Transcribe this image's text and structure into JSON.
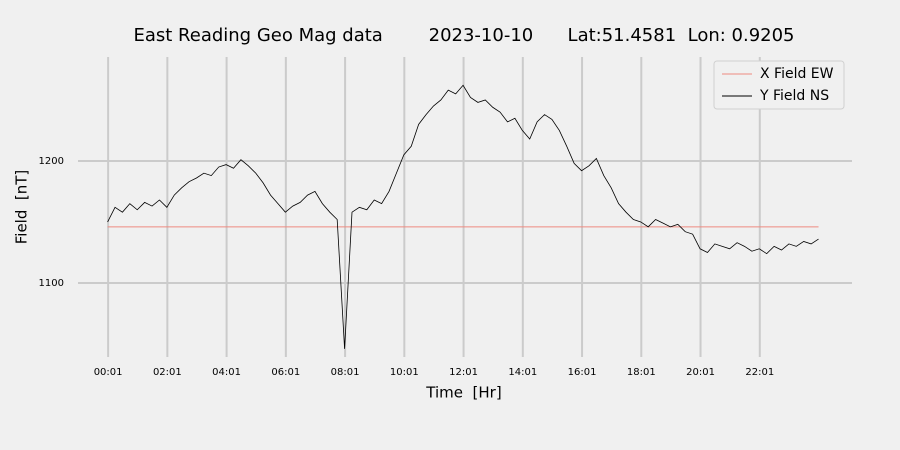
{
  "chart_data": {
    "type": "line",
    "title": "East Reading Geo Mag data        2023-10-10      Lat:51.4581  Lon: 0.9205",
    "x_label": "Time  [Hr]",
    "y_label": "Field  [nT]",
    "xlim": [
      -1.0,
      25.13
    ],
    "ylim": [
      1039.3,
      1285.2
    ],
    "xticks": [
      {
        "value": 0.0167,
        "label": "00:01"
      },
      {
        "value": 2.0167,
        "label": "02:01"
      },
      {
        "value": 4.0167,
        "label": "04:01"
      },
      {
        "value": 6.0167,
        "label": "06:01"
      },
      {
        "value": 8.0167,
        "label": "08:01"
      },
      {
        "value": 10.0167,
        "label": "10:01"
      },
      {
        "value": 12.0167,
        "label": "12:01"
      },
      {
        "value": 14.0167,
        "label": "14:01"
      },
      {
        "value": 16.0167,
        "label": "16:01"
      },
      {
        "value": 18.0167,
        "label": "18:01"
      },
      {
        "value": 20.0167,
        "label": "20:01"
      },
      {
        "value": 22.0167,
        "label": "22:01"
      }
    ],
    "yticks": [
      1100,
      1200
    ],
    "grid": true,
    "legend": "upper right",
    "x": [
      0,
      0.25,
      0.5,
      0.75,
      1,
      1.25,
      1.5,
      1.75,
      2,
      2.25,
      2.5,
      2.75,
      3,
      3.25,
      3.5,
      3.75,
      4,
      4.25,
      4.5,
      4.75,
      5,
      5.25,
      5.5,
      5.75,
      6,
      6.25,
      6.5,
      6.75,
      7,
      7.25,
      7.5,
      7.75,
      8,
      8.25,
      8.5,
      8.75,
      9,
      9.25,
      9.5,
      9.75,
      10,
      10.25,
      10.5,
      10.75,
      11,
      11.25,
      11.5,
      11.75,
      12,
      12.25,
      12.5,
      12.75,
      13,
      13.25,
      13.5,
      13.75,
      14,
      14.25,
      14.5,
      14.75,
      15,
      15.25,
      15.5,
      15.75,
      16,
      16.25,
      16.5,
      16.75,
      17,
      17.25,
      17.5,
      17.75,
      18,
      18.25,
      18.5,
      18.75,
      19,
      19.25,
      19.5,
      19.75,
      20,
      20.25,
      20.5,
      20.75,
      21,
      21.25,
      21.5,
      21.75,
      22,
      22.25,
      22.5,
      22.75,
      23,
      23.25,
      23.5,
      23.75,
      24
    ],
    "series": [
      {
        "name": "X Field EW",
        "color": "#ee8a80",
        "values": [
          1146,
          1146,
          1146,
          1146,
          1146,
          1146,
          1146,
          1146,
          1146,
          1146,
          1146,
          1146,
          1146,
          1146,
          1146,
          1146,
          1146,
          1146,
          1146,
          1146,
          1146,
          1146,
          1146,
          1146,
          1146,
          1146,
          1146,
          1146,
          1146,
          1146,
          1146,
          1146,
          1146,
          1146,
          1146,
          1146,
          1146,
          1146,
          1146,
          1146,
          1146,
          1146,
          1146,
          1146,
          1146,
          1146,
          1146,
          1146,
          1146,
          1146,
          1146,
          1146,
          1146,
          1146,
          1146,
          1146,
          1146,
          1146,
          1146,
          1146,
          1146,
          1146,
          1146,
          1146,
          1146,
          1146,
          1146,
          1146,
          1146,
          1146,
          1146,
          1146,
          1146,
          1146,
          1146,
          1146,
          1146,
          1146,
          1146,
          1146,
          1146,
          1146,
          1146,
          1146,
          1146,
          1146,
          1146,
          1146,
          1146,
          1146,
          1146,
          1146,
          1146,
          1146,
          1146,
          1146,
          1146
        ]
      },
      {
        "name": "Y Field NS",
        "color": "#000000",
        "values": [
          1150,
          1162,
          1158,
          1165,
          1160,
          1166,
          1163,
          1168,
          1162,
          1172,
          1178,
          1183,
          1186,
          1190,
          1188,
          1195,
          1197,
          1194,
          1201,
          1196,
          1190,
          1182,
          1172,
          1165,
          1158,
          1163,
          1166,
          1172,
          1175,
          1165,
          1158,
          1152,
          1046,
          1158,
          1162,
          1160,
          1168,
          1165,
          1175,
          1190,
          1205,
          1212,
          1230,
          1238,
          1245,
          1250,
          1258,
          1255,
          1262,
          1252,
          1248,
          1250,
          1244,
          1240,
          1232,
          1235,
          1225,
          1218,
          1232,
          1238,
          1234,
          1225,
          1212,
          1198,
          1192,
          1196,
          1202,
          1188,
          1178,
          1165,
          1158,
          1152,
          1150,
          1146,
          1152,
          1149,
          1146,
          1148,
          1142,
          1140,
          1128,
          1125,
          1132,
          1130,
          1128,
          1133,
          1130,
          1126,
          1128,
          1124,
          1130,
          1127,
          1132,
          1130,
          1134,
          1132,
          1136
        ]
      }
    ]
  }
}
